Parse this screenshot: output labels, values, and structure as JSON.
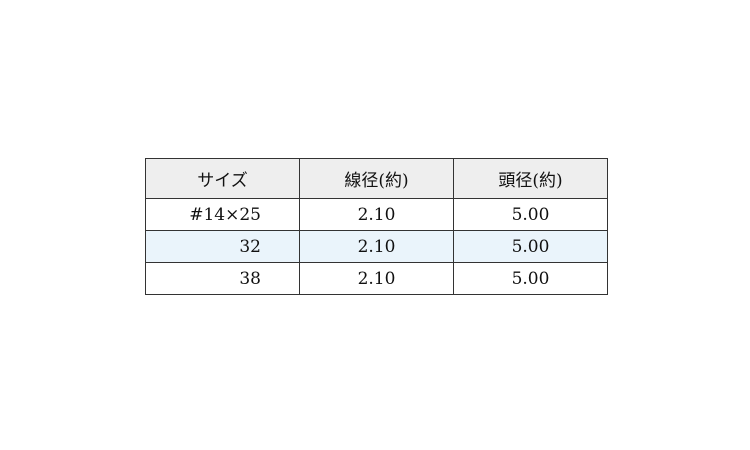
{
  "table": {
    "headers": [
      "サイズ",
      "線径(約)",
      "頭径(約)"
    ],
    "rows": [
      [
        "#14×25",
        "2.10",
        "5.00"
      ],
      [
        "32",
        "2.10",
        "5.00"
      ],
      [
        "38",
        "2.10",
        "5.00"
      ]
    ]
  },
  "colors": {
    "header_bg": "#eeeeee",
    "alt_row_bg": "#eaf4fb",
    "border": "#333333"
  }
}
